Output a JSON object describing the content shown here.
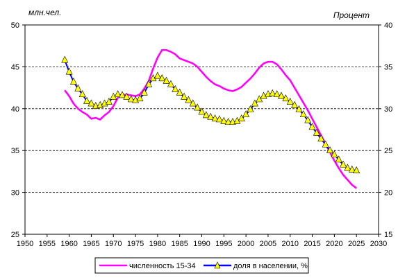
{
  "chart_data": {
    "type": "line",
    "title": "",
    "y_left_unit": "млн.чел.",
    "y_right_unit": "Процент",
    "x_ticks": [
      "1950",
      "1955",
      "1960",
      "1965",
      "1970",
      "1975",
      "1980",
      "1985",
      "1990",
      "1995",
      "2000",
      "2005",
      "2010",
      "2015",
      "2020",
      "2025",
      "2030"
    ],
    "y_left_ticks": [
      "25",
      "30",
      "35",
      "40",
      "45",
      "50"
    ],
    "y_right_ticks": [
      "15",
      "20",
      "25",
      "30",
      "35",
      "40"
    ],
    "xlim": [
      1950,
      2030
    ],
    "ylim_left": [
      25,
      50
    ],
    "ylim_right": [
      15,
      40
    ],
    "grid": "horizontal dashed",
    "legend_position": "bottom",
    "series": [
      {
        "name": "численность 15-34",
        "axis": "left",
        "color": "#ff00ff",
        "marker": "none",
        "x": [
          1959,
          1960,
          1961,
          1962,
          1963,
          1964,
          1965,
          1966,
          1967,
          1968,
          1969,
          1970,
          1971,
          1972,
          1973,
          1974,
          1975,
          1976,
          1977,
          1978,
          1979,
          1980,
          1981,
          1982,
          1983,
          1984,
          1985,
          1986,
          1987,
          1988,
          1989,
          1990,
          1991,
          1992,
          1993,
          1994,
          1995,
          1996,
          1997,
          1998,
          1999,
          2000,
          2001,
          2002,
          2003,
          2004,
          2005,
          2006,
          2007,
          2008,
          2009,
          2010,
          2011,
          2012,
          2013,
          2014,
          2015,
          2016,
          2017,
          2018,
          2019,
          2020,
          2021,
          2022,
          2023,
          2024,
          2025
        ],
        "values": [
          42.2,
          41.5,
          40.6,
          40.0,
          39.6,
          39.3,
          38.8,
          38.9,
          38.7,
          39.2,
          39.6,
          40.3,
          41.3,
          41.6,
          41.7,
          41.6,
          41.5,
          41.7,
          42.4,
          43.3,
          44.8,
          46.1,
          47.0,
          47.0,
          46.8,
          46.5,
          46.0,
          45.8,
          45.6,
          45.4,
          45.0,
          44.4,
          43.8,
          43.3,
          42.9,
          42.7,
          42.4,
          42.2,
          42.1,
          42.3,
          42.6,
          43.1,
          43.6,
          44.2,
          44.9,
          45.4,
          45.6,
          45.6,
          45.3,
          44.7,
          44.0,
          43.4,
          42.5,
          41.6,
          40.7,
          39.8,
          38.8,
          37.8,
          36.8,
          35.8,
          34.8,
          33.8,
          32.9,
          32.1,
          31.5,
          30.9,
          30.5
        ]
      },
      {
        "name": "доля в населении, %",
        "axis": "right",
        "color": "#0000ff",
        "marker": "triangle",
        "marker_fill": "#ffff00",
        "x": [
          1959,
          1960,
          1961,
          1962,
          1963,
          1964,
          1965,
          1966,
          1967,
          1968,
          1969,
          1970,
          1971,
          1972,
          1973,
          1974,
          1975,
          1976,
          1977,
          1978,
          1979,
          1980,
          1981,
          1982,
          1983,
          1984,
          1985,
          1986,
          1987,
          1988,
          1989,
          1990,
          1991,
          1992,
          1993,
          1994,
          1995,
          1996,
          1997,
          1998,
          1999,
          2000,
          2001,
          2002,
          2003,
          2004,
          2005,
          2006,
          2007,
          2008,
          2009,
          2010,
          2011,
          2012,
          2013,
          2014,
          2015,
          2016,
          2017,
          2018,
          2019,
          2020,
          2021,
          2022,
          2023,
          2024,
          2025
        ],
        "values": [
          35.8,
          34.4,
          33.2,
          32.4,
          31.7,
          30.9,
          30.6,
          30.3,
          30.4,
          30.6,
          30.8,
          31.4,
          31.7,
          31.6,
          31.4,
          31.1,
          31.0,
          31.2,
          31.9,
          32.9,
          33.6,
          33.9,
          33.6,
          33.3,
          32.9,
          32.3,
          31.9,
          31.4,
          31.0,
          30.6,
          30.1,
          29.6,
          29.2,
          29.0,
          28.8,
          28.7,
          28.5,
          28.4,
          28.4,
          28.5,
          28.8,
          29.3,
          29.9,
          30.6,
          31.1,
          31.5,
          31.7,
          31.8,
          31.7,
          31.5,
          31.2,
          30.8,
          30.4,
          29.9,
          29.3,
          28.6,
          27.8,
          27.1,
          26.4,
          25.7,
          25.0,
          24.5,
          23.9,
          23.3,
          22.9,
          22.7,
          22.6
        ]
      }
    ]
  }
}
